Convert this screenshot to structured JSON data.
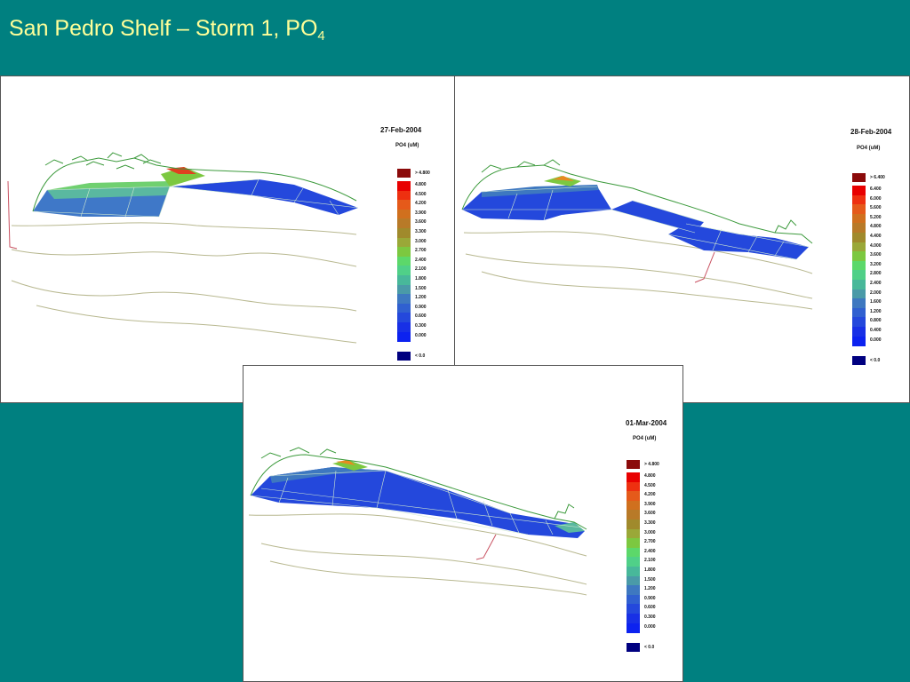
{
  "slide": {
    "title_main": "San Pedro Shelf – Storm 1, PO",
    "title_sub": "4"
  },
  "palette": {
    "background": "#008080",
    "title_color": "#ffff99",
    "coastline": "#3c9a3c",
    "isobath": "#b8b890",
    "transect": "#c85060"
  },
  "panels": [
    {
      "id": "p1",
      "date": "27-Feb-2004",
      "variable": "PO4 (uM)",
      "legend": {
        "over": "> 4.800",
        "under": "< 0.0",
        "levels": [
          "4.800",
          "4.500",
          "4.200",
          "3.900",
          "3.600",
          "3.300",
          "3.000",
          "2.700",
          "2.400",
          "2.100",
          "1.800",
          "1.500",
          "1.200",
          "0.900",
          "0.600",
          "0.300",
          "0.000"
        ]
      }
    },
    {
      "id": "p2",
      "date": "28-Feb-2004",
      "variable": "PO4 (uM)",
      "legend": {
        "over": "> 6.400",
        "under": "< 0.0",
        "levels": [
          "6.400",
          "6.000",
          "5.600",
          "5.200",
          "4.800",
          "4.400",
          "4.000",
          "3.600",
          "3.200",
          "2.800",
          "2.400",
          "2.000",
          "1.600",
          "1.200",
          "0.800",
          "0.400",
          "0.000"
        ]
      }
    },
    {
      "id": "p3",
      "date": "01-Mar-2004",
      "variable": "PO4 (uM)",
      "legend": {
        "over": "> 4.800",
        "under": "< 0.0",
        "levels": [
          "4.800",
          "4.500",
          "4.200",
          "3.900",
          "3.600",
          "3.300",
          "3.000",
          "2.700",
          "2.400",
          "2.100",
          "1.800",
          "1.500",
          "1.200",
          "0.900",
          "0.600",
          "0.300",
          "0.000"
        ]
      }
    }
  ],
  "legend_colors": [
    "#e80000",
    "#ee3010",
    "#e55a1a",
    "#d0701e",
    "#b87a28",
    "#a08a2c",
    "#9aa838",
    "#7cc840",
    "#5cd86a",
    "#50d088",
    "#48b89a",
    "#4a9aa8",
    "#3e78c0",
    "#3060d0",
    "#2448dc",
    "#1830e6",
    "#0c22f0"
  ],
  "legend_over_color": "#8b0a0a",
  "legend_under_color": "#000080"
}
